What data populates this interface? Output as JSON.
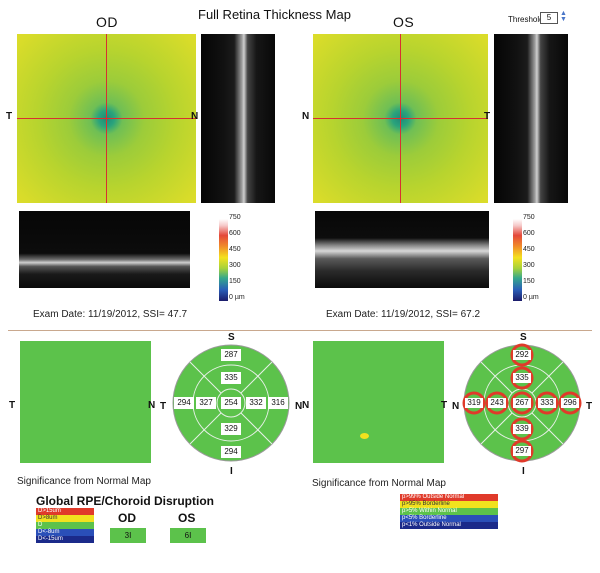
{
  "header": {
    "title": "Full Retina Thickness Map",
    "od": "OD",
    "os": "OS",
    "threshold_label": "Threshold",
    "threshold_value": "5"
  },
  "maps": {
    "od_left": "T",
    "od_right": "N",
    "os_left": "N",
    "os_right": "T"
  },
  "scale": {
    "ticks": [
      "750",
      "600",
      "450",
      "300",
      "150",
      "0 µm"
    ]
  },
  "exam": {
    "od": "Exam Date: 11/19/2012, SSI= 47.7",
    "os": "Exam Date: 11/19/2012, SSI= 67.2"
  },
  "significance": {
    "od": {
      "left": "T",
      "right": "N",
      "top": "S",
      "bottom": "I",
      "sl": "N",
      "sr": "T",
      "center": "254",
      "inner": {
        "s": "335",
        "n": "332",
        "i": "329",
        "t": "327"
      },
      "outer": {
        "s": "287",
        "n": "316",
        "i": "294",
        "t": "294"
      }
    },
    "os": {
      "left": "N",
      "right": "T",
      "top": "S",
      "bottom": "I",
      "sl": "N",
      "sr": "T",
      "center": "267",
      "inner": {
        "s": "335",
        "t": "333",
        "i": "339",
        "n": "243"
      },
      "outer": {
        "s": "292",
        "t": "296",
        "i": "297",
        "n": "319"
      }
    },
    "caption_od": "Significance from Normal Map",
    "caption_os": "Significance from Normal Map"
  },
  "rpe": {
    "title": "Global RPE/Choroid Disruption",
    "legend": [
      "D>15um",
      "D>8um",
      "D",
      "D<-8um",
      "D<-15um"
    ],
    "od_label": "OD",
    "os_label": "OS",
    "od_value": "3I",
    "os_value": "6I"
  },
  "norm_legend": [
    "p>99% Outside Normal",
    "p>95% Borderline",
    "p>5% Within Normal",
    "p<5% Borderline",
    "p<1% Outside Normal"
  ],
  "colors": {
    "normal_green": "#5cc24b",
    "outside_red": "#e03a2a",
    "borderline_yellow": "#f1e21e",
    "low_blue": "#2a4fb8"
  }
}
